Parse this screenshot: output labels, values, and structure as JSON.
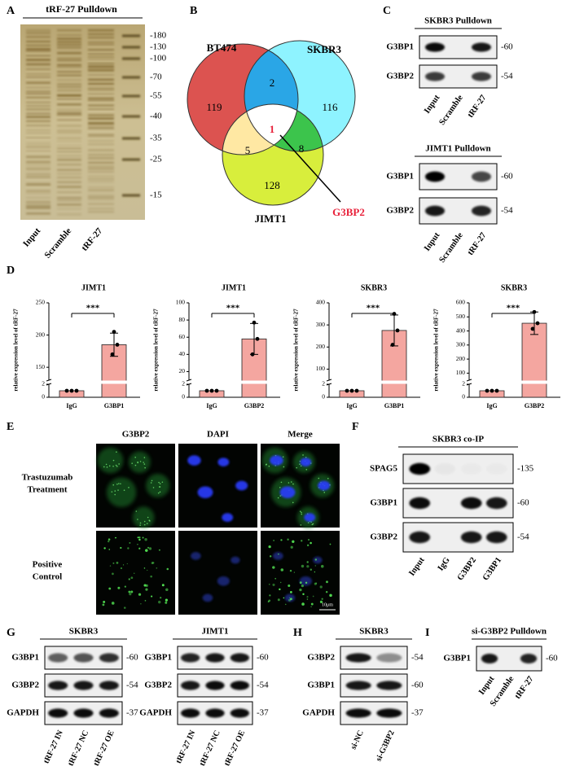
{
  "panels": {
    "A": {
      "label": "A",
      "title": "tRF-27 Pulldown",
      "markers": [
        "-180",
        "-130",
        "-100",
        "-70",
        "-55",
        "-40",
        "-35",
        "-25",
        "-15"
      ],
      "lanes": [
        "Input",
        "Scramble",
        "tRF-27"
      ]
    },
    "B": {
      "label": "B",
      "sets": [
        "BT474",
        "SKBR3",
        "JIMT1"
      ],
      "counts": [
        119,
        2,
        116,
        1,
        5,
        8,
        128
      ],
      "highlight": "G3BP2"
    },
    "C": {
      "label": "C",
      "groups": [
        {
          "title": "SKBR3 Pulldown",
          "proteins": [
            "G3BP1",
            "G3BP2"
          ],
          "mw": [
            "-60",
            "-54"
          ],
          "lanes": [
            "Input",
            "Scramble",
            "tRF-27"
          ]
        },
        {
          "title": "JIMT1 Pulldown",
          "proteins": [
            "G3BP1",
            "G3BP2"
          ],
          "mw": [
            "-60",
            "-54"
          ],
          "lanes": [
            "Input",
            "Scramble",
            "tRF-27"
          ]
        }
      ]
    },
    "D": {
      "label": "D"
    },
    "E": {
      "label": "E",
      "columns": [
        "G3BP2",
        "DAPI",
        "Merge"
      ],
      "rows": [
        [
          "Trastuzumab",
          "Treatment"
        ],
        [
          "Positive",
          "Control"
        ]
      ],
      "scale_bar": "10μm"
    },
    "F": {
      "label": "F",
      "groups": [
        {
          "title": "SKBR3 co-IP",
          "proteins": [
            "SPAG5",
            "G3BP1",
            "G3BP2"
          ],
          "mw": [
            "-135",
            "-60",
            "-54"
          ],
          "lanes": [
            "Input",
            "IgG",
            "G3BP2",
            "G3BP1"
          ]
        }
      ]
    },
    "G": {
      "label": "G",
      "groups": [
        {
          "title": "SKBR3",
          "proteins": [
            "G3BP1",
            "G3BP2",
            "GAPDH"
          ],
          "mw": [
            "-60",
            "-54",
            "-37"
          ],
          "lanes": [
            "tRF-27 IN",
            "tRF-27 NC",
            "tRF-27 OE"
          ]
        },
        {
          "title": "JIMT1",
          "proteins": [
            "G3BP1",
            "G3BP2",
            "GAPDH"
          ],
          "mw": [
            "-60",
            "-54",
            "-37"
          ],
          "lanes": [
            "tRF-27 IN",
            "tRF-27 NC",
            "tRF-27 OE"
          ]
        }
      ]
    },
    "H": {
      "label": "H",
      "groups": [
        {
          "title": "SKBR3",
          "proteins": [
            "G3BP2",
            "G3BP1",
            "GAPDH"
          ],
          "mw": [
            "-54",
            "-60",
            "-37"
          ],
          "lanes": [
            "si-NC",
            "si-G3BP2"
          ]
        }
      ]
    },
    "I": {
      "label": "I",
      "groups": [
        {
          "title": "si-G3BP2 Pulldown",
          "proteins": [
            "G3BP1"
          ],
          "mw": [
            "-60"
          ],
          "lanes": [
            "Input",
            "Scramble",
            "tRF-27"
          ]
        }
      ]
    }
  },
  "chart_data": [
    {
      "type": "bar",
      "title": "JIMT1",
      "y_label": "relative expression level of tRF-27",
      "categories": [
        "IgG",
        "G3BP1"
      ],
      "values": [
        1,
        185
      ],
      "errors": [
        0,
        18
      ],
      "points": [
        [
          1,
          1,
          1
        ],
        [
          205,
          185,
          170
        ]
      ],
      "color": "#f4a6a0",
      "ylim": [
        0,
        250
      ],
      "ybreak": [
        2,
        130
      ],
      "yticks": [
        0,
        2,
        150,
        200,
        250
      ],
      "significance": "***"
    },
    {
      "type": "bar",
      "title": "JIMT1",
      "y_label": "relative expression level of tRF-27",
      "categories": [
        "IgG",
        "G3BP2"
      ],
      "values": [
        1,
        58
      ],
      "errors": [
        0,
        18
      ],
      "points": [
        [
          1,
          1,
          1
        ],
        [
          77,
          58,
          40
        ]
      ],
      "color": "#f4a6a0",
      "ylim": [
        0,
        100
      ],
      "ybreak": [
        2,
        10
      ],
      "yticks": [
        0,
        2,
        20,
        40,
        60,
        80,
        100
      ],
      "significance": "***"
    },
    {
      "type": "bar",
      "title": "SKBR3",
      "y_label": "relative expression level of tRF-27",
      "categories": [
        "IgG",
        "G3BP1"
      ],
      "values": [
        1,
        275
      ],
      "errors": [
        0,
        70
      ],
      "points": [
        [
          1,
          1,
          1
        ],
        [
          350,
          275,
          210
        ]
      ],
      "color": "#f4a6a0",
      "ylim": [
        0,
        400
      ],
      "ybreak": [
        2,
        50
      ],
      "yticks": [
        0,
        2,
        100,
        200,
        300,
        400
      ],
      "significance": "***"
    },
    {
      "type": "bar",
      "title": "SKBR3",
      "y_label": "relative expression level of tRF-27",
      "categories": [
        "IgG",
        "G3BP2"
      ],
      "values": [
        1,
        455
      ],
      "errors": [
        0,
        80
      ],
      "points": [
        [
          1,
          1,
          1
        ],
        [
          535,
          455,
          415
        ]
      ],
      "color": "#f4a6a0",
      "ylim": [
        0,
        600
      ],
      "ybreak": [
        2,
        50
      ],
      "yticks": [
        0,
        2,
        100,
        200,
        300,
        400,
        500,
        600
      ],
      "significance": "***"
    }
  ]
}
